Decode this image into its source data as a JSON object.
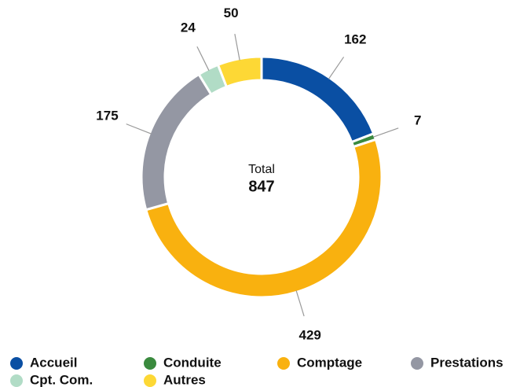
{
  "chart_data": {
    "type": "donut",
    "categories": [
      "Accueil",
      "Conduite",
      "Comptage",
      "Prestations",
      "Cpt. Com.",
      "Autres"
    ],
    "values": [
      162,
      7,
      429,
      175,
      24,
      50
    ],
    "colors": [
      "#0a4fa3",
      "#3a8a3e",
      "#f9b10f",
      "#9497a3",
      "#b1dcc6",
      "#fdd835"
    ],
    "center_label": "Total",
    "total": 847
  }
}
